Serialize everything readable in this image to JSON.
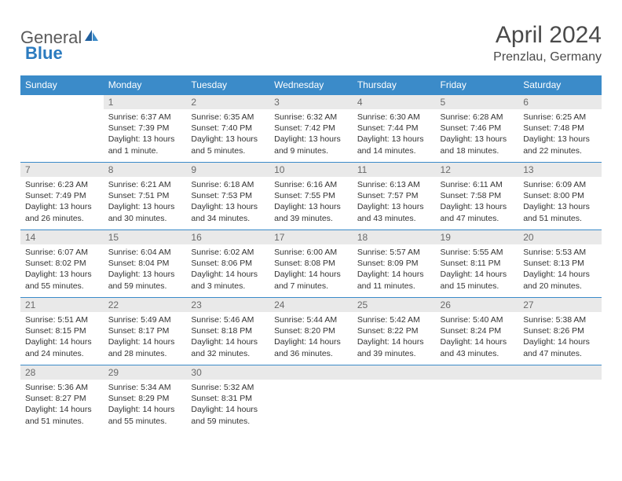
{
  "logo": {
    "part1": "General",
    "part2": "Blue"
  },
  "title": "April 2024",
  "subtitle": "Prenzlau, Germany",
  "colors": {
    "header_bg": "#3b8bc9",
    "header_text": "#ffffff",
    "daynum_bg": "#e9e9e9",
    "daynum_text": "#6a6a6a",
    "body_text": "#333333",
    "border": "#3b8bc9",
    "logo_gray": "#5a5a5a",
    "logo_blue": "#2b7bbf"
  },
  "weekdays": [
    "Sunday",
    "Monday",
    "Tuesday",
    "Wednesday",
    "Thursday",
    "Friday",
    "Saturday"
  ],
  "weeks": [
    [
      null,
      {
        "n": "1",
        "sr": "Sunrise: 6:37 AM",
        "ss": "Sunset: 7:39 PM",
        "d1": "Daylight: 13 hours",
        "d2": "and 1 minute."
      },
      {
        "n": "2",
        "sr": "Sunrise: 6:35 AM",
        "ss": "Sunset: 7:40 PM",
        "d1": "Daylight: 13 hours",
        "d2": "and 5 minutes."
      },
      {
        "n": "3",
        "sr": "Sunrise: 6:32 AM",
        "ss": "Sunset: 7:42 PM",
        "d1": "Daylight: 13 hours",
        "d2": "and 9 minutes."
      },
      {
        "n": "4",
        "sr": "Sunrise: 6:30 AM",
        "ss": "Sunset: 7:44 PM",
        "d1": "Daylight: 13 hours",
        "d2": "and 14 minutes."
      },
      {
        "n": "5",
        "sr": "Sunrise: 6:28 AM",
        "ss": "Sunset: 7:46 PM",
        "d1": "Daylight: 13 hours",
        "d2": "and 18 minutes."
      },
      {
        "n": "6",
        "sr": "Sunrise: 6:25 AM",
        "ss": "Sunset: 7:48 PM",
        "d1": "Daylight: 13 hours",
        "d2": "and 22 minutes."
      }
    ],
    [
      {
        "n": "7",
        "sr": "Sunrise: 6:23 AM",
        "ss": "Sunset: 7:49 PM",
        "d1": "Daylight: 13 hours",
        "d2": "and 26 minutes."
      },
      {
        "n": "8",
        "sr": "Sunrise: 6:21 AM",
        "ss": "Sunset: 7:51 PM",
        "d1": "Daylight: 13 hours",
        "d2": "and 30 minutes."
      },
      {
        "n": "9",
        "sr": "Sunrise: 6:18 AM",
        "ss": "Sunset: 7:53 PM",
        "d1": "Daylight: 13 hours",
        "d2": "and 34 minutes."
      },
      {
        "n": "10",
        "sr": "Sunrise: 6:16 AM",
        "ss": "Sunset: 7:55 PM",
        "d1": "Daylight: 13 hours",
        "d2": "and 39 minutes."
      },
      {
        "n": "11",
        "sr": "Sunrise: 6:13 AM",
        "ss": "Sunset: 7:57 PM",
        "d1": "Daylight: 13 hours",
        "d2": "and 43 minutes."
      },
      {
        "n": "12",
        "sr": "Sunrise: 6:11 AM",
        "ss": "Sunset: 7:58 PM",
        "d1": "Daylight: 13 hours",
        "d2": "and 47 minutes."
      },
      {
        "n": "13",
        "sr": "Sunrise: 6:09 AM",
        "ss": "Sunset: 8:00 PM",
        "d1": "Daylight: 13 hours",
        "d2": "and 51 minutes."
      }
    ],
    [
      {
        "n": "14",
        "sr": "Sunrise: 6:07 AM",
        "ss": "Sunset: 8:02 PM",
        "d1": "Daylight: 13 hours",
        "d2": "and 55 minutes."
      },
      {
        "n": "15",
        "sr": "Sunrise: 6:04 AM",
        "ss": "Sunset: 8:04 PM",
        "d1": "Daylight: 13 hours",
        "d2": "and 59 minutes."
      },
      {
        "n": "16",
        "sr": "Sunrise: 6:02 AM",
        "ss": "Sunset: 8:06 PM",
        "d1": "Daylight: 14 hours",
        "d2": "and 3 minutes."
      },
      {
        "n": "17",
        "sr": "Sunrise: 6:00 AM",
        "ss": "Sunset: 8:08 PM",
        "d1": "Daylight: 14 hours",
        "d2": "and 7 minutes."
      },
      {
        "n": "18",
        "sr": "Sunrise: 5:57 AM",
        "ss": "Sunset: 8:09 PM",
        "d1": "Daylight: 14 hours",
        "d2": "and 11 minutes."
      },
      {
        "n": "19",
        "sr": "Sunrise: 5:55 AM",
        "ss": "Sunset: 8:11 PM",
        "d1": "Daylight: 14 hours",
        "d2": "and 15 minutes."
      },
      {
        "n": "20",
        "sr": "Sunrise: 5:53 AM",
        "ss": "Sunset: 8:13 PM",
        "d1": "Daylight: 14 hours",
        "d2": "and 20 minutes."
      }
    ],
    [
      {
        "n": "21",
        "sr": "Sunrise: 5:51 AM",
        "ss": "Sunset: 8:15 PM",
        "d1": "Daylight: 14 hours",
        "d2": "and 24 minutes."
      },
      {
        "n": "22",
        "sr": "Sunrise: 5:49 AM",
        "ss": "Sunset: 8:17 PM",
        "d1": "Daylight: 14 hours",
        "d2": "and 28 minutes."
      },
      {
        "n": "23",
        "sr": "Sunrise: 5:46 AM",
        "ss": "Sunset: 8:18 PM",
        "d1": "Daylight: 14 hours",
        "d2": "and 32 minutes."
      },
      {
        "n": "24",
        "sr": "Sunrise: 5:44 AM",
        "ss": "Sunset: 8:20 PM",
        "d1": "Daylight: 14 hours",
        "d2": "and 36 minutes."
      },
      {
        "n": "25",
        "sr": "Sunrise: 5:42 AM",
        "ss": "Sunset: 8:22 PM",
        "d1": "Daylight: 14 hours",
        "d2": "and 39 minutes."
      },
      {
        "n": "26",
        "sr": "Sunrise: 5:40 AM",
        "ss": "Sunset: 8:24 PM",
        "d1": "Daylight: 14 hours",
        "d2": "and 43 minutes."
      },
      {
        "n": "27",
        "sr": "Sunrise: 5:38 AM",
        "ss": "Sunset: 8:26 PM",
        "d1": "Daylight: 14 hours",
        "d2": "and 47 minutes."
      }
    ],
    [
      {
        "n": "28",
        "sr": "Sunrise: 5:36 AM",
        "ss": "Sunset: 8:27 PM",
        "d1": "Daylight: 14 hours",
        "d2": "and 51 minutes."
      },
      {
        "n": "29",
        "sr": "Sunrise: 5:34 AM",
        "ss": "Sunset: 8:29 PM",
        "d1": "Daylight: 14 hours",
        "d2": "and 55 minutes."
      },
      {
        "n": "30",
        "sr": "Sunrise: 5:32 AM",
        "ss": "Sunset: 8:31 PM",
        "d1": "Daylight: 14 hours",
        "d2": "and 59 minutes."
      },
      null,
      null,
      null,
      null
    ]
  ]
}
